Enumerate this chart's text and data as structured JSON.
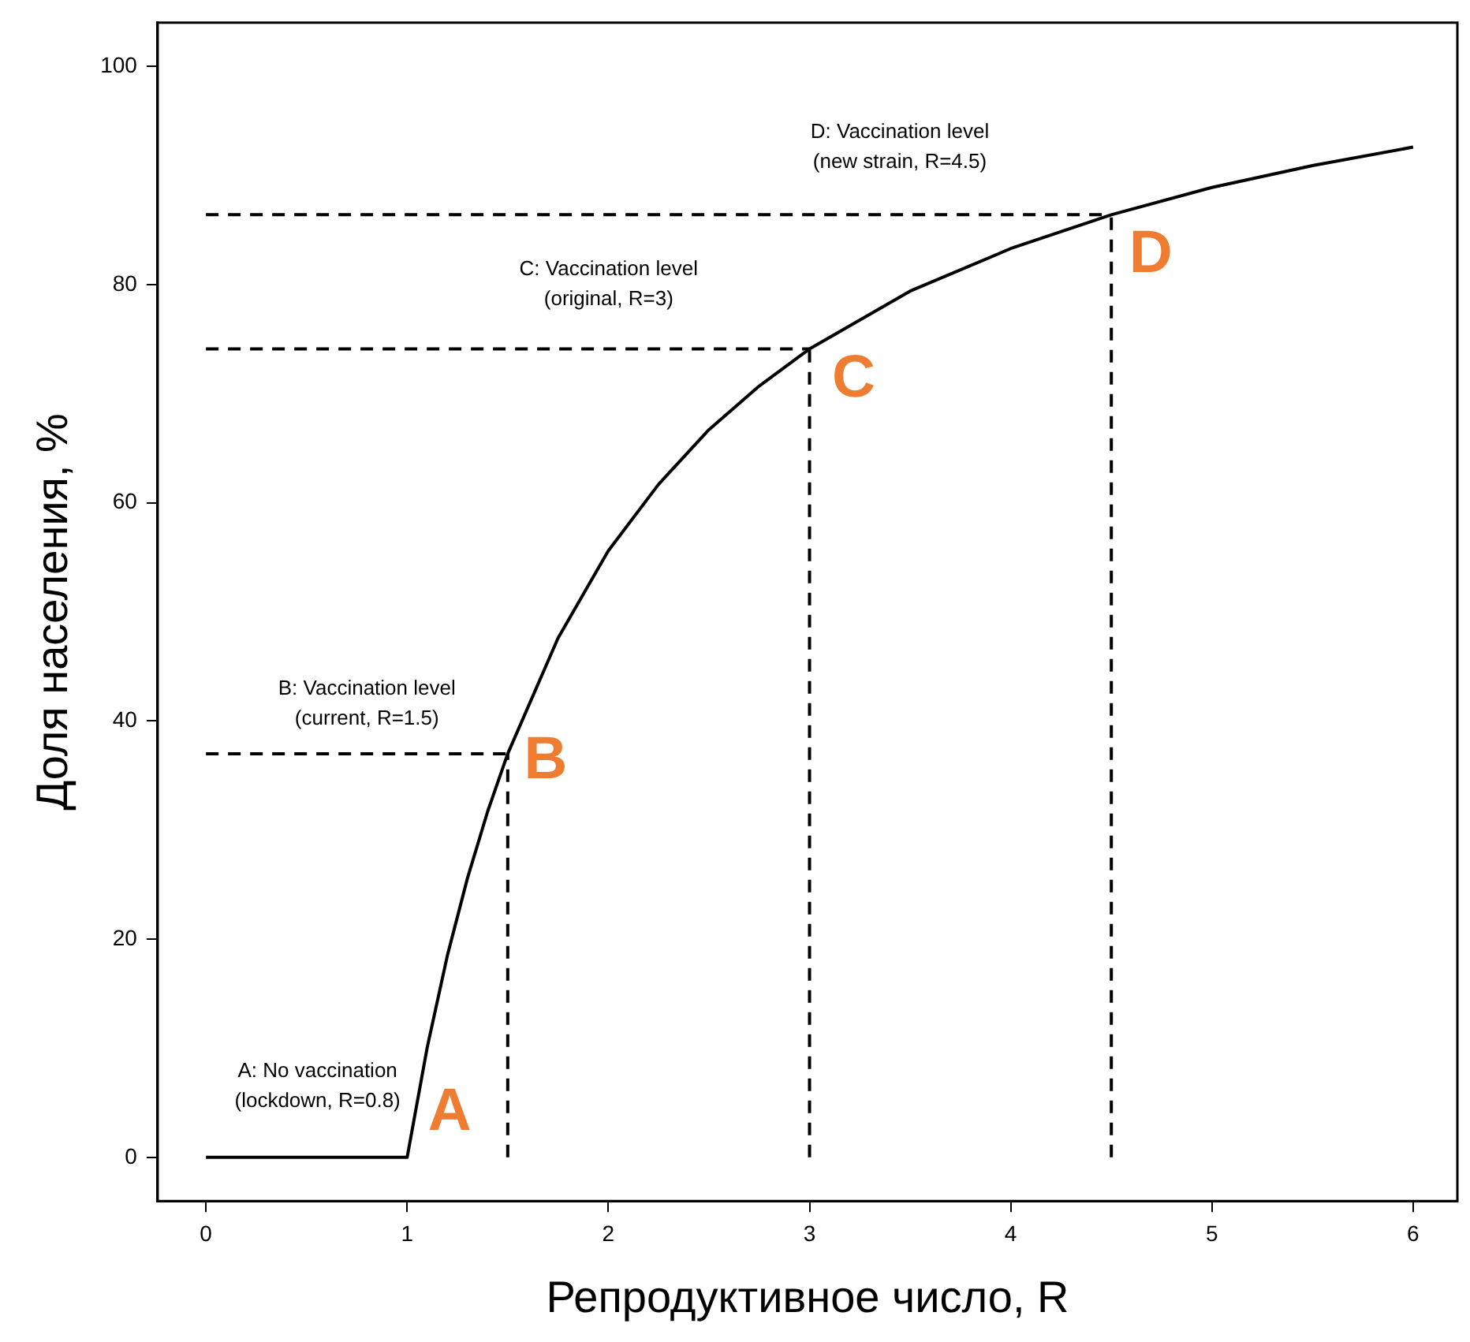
{
  "chart_data": {
    "type": "line",
    "xlabel": "Репродуктивное число, R",
    "ylabel": "Доля населения, %",
    "xlim": [
      -0.24,
      6.22
    ],
    "ylim": [
      -4,
      104
    ],
    "xticks": [
      0,
      1,
      2,
      3,
      4,
      5,
      6
    ],
    "yticks": [
      0,
      20,
      40,
      60,
      80,
      100
    ],
    "grid": false,
    "legend": false,
    "marker": "none",
    "series": [
      {
        "color": "#000000",
        "line_style": "solid",
        "x": [
          0,
          1,
          1.1,
          1.2,
          1.3,
          1.4,
          1.5,
          1.75,
          2,
          2.25,
          2.5,
          2.75,
          3,
          3.5,
          4,
          4.5,
          5,
          5.5,
          6
        ],
        "values": [
          0,
          0,
          10.1,
          18.5,
          25.6,
          31.7,
          37.0,
          47.6,
          55.6,
          61.7,
          66.7,
          70.7,
          74.1,
          79.4,
          83.3,
          86.4,
          88.9,
          90.9,
          92.6
        ]
      },
      {
        "color": "#000000",
        "line_style": "dashed",
        "x": [
          0,
          1.5
        ],
        "values": [
          37.0,
          37.0
        ]
      },
      {
        "color": "#000000",
        "line_style": "dashed",
        "x": [
          1.5,
          1.5
        ],
        "values": [
          0,
          37.0
        ]
      },
      {
        "color": "#000000",
        "line_style": "dashed",
        "x": [
          0,
          3
        ],
        "values": [
          74.1,
          74.1
        ]
      },
      {
        "color": "#000000",
        "line_style": "dashed",
        "x": [
          3,
          3
        ],
        "values": [
          0,
          74.1
        ]
      },
      {
        "color": "#000000",
        "line_style": "dashed",
        "x": [
          0,
          4.5
        ],
        "values": [
          86.4,
          86.4
        ]
      },
      {
        "color": "#000000",
        "line_style": "dashed",
        "x": [
          4.5,
          4.5
        ],
        "values": [
          0,
          86.4
        ]
      }
    ],
    "annotations": [
      "A: No vaccination\n(lockdown, R=0.8)",
      "B: Vaccination level\n(current, R=1.5)",
      "C: Vaccination level\n(original, R=3)",
      "D: Vaccination level\n(new strain, R=4.5)",
      {
        "text": "A",
        "x": 1,
        "y": 0
      },
      {
        "text": "B",
        "x": 1.5,
        "y": 37.0
      },
      {
        "text": "C",
        "x": 3,
        "y": 74.1
      },
      {
        "text": "D",
        "x": 4.5,
        "y": 86.4
      }
    ]
  }
}
